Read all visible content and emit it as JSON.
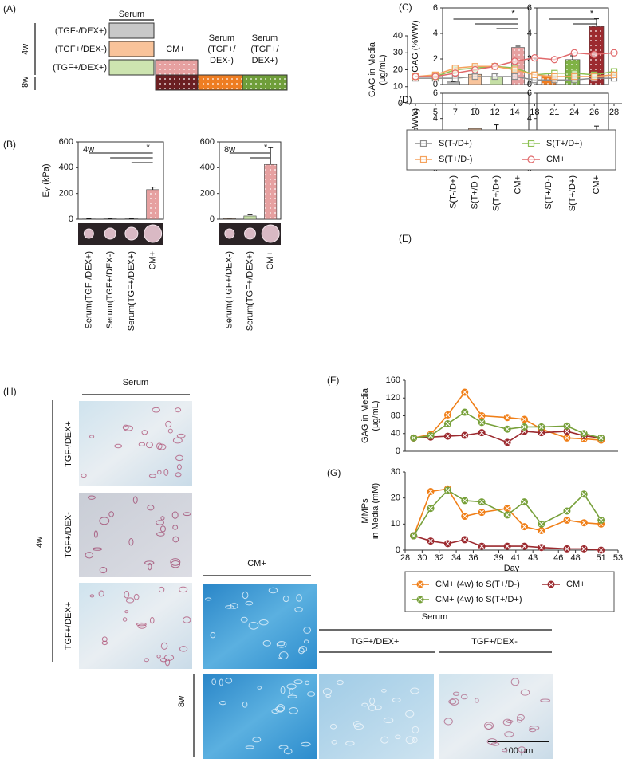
{
  "panel_labels": [
    "(A)",
    "(B)",
    "(C)",
    "(D)",
    "(E)",
    "(F)",
    "(G)",
    "(H)"
  ],
  "schematic": {
    "serum_header": "Serum",
    "conditions": [
      "(TGF-/DEX+)",
      "(TGF+/DEX-)",
      "(TGF+/DEX+)"
    ],
    "weeks": [
      "4w",
      "8w"
    ],
    "cm": "CM+",
    "switch_1": [
      "Serum",
      "(TGF+/",
      "DEX-)"
    ],
    "switch_2": [
      "Serum",
      "(TGF+/",
      "DEX+)"
    ]
  },
  "histology": {
    "serum": "Serum",
    "rows": [
      "TGF-/DEX+",
      "TGF+/DEX-",
      "TGF+/DEX+"
    ],
    "week_4": "4w",
    "cm": "CM+",
    "serum_8w": "Serum",
    "cols_8w": [
      "TGF+/DEX+",
      "TGF+/DEX-"
    ],
    "week_8": "8w",
    "scale_bar": "100 μm"
  },
  "chart_data": [
    {
      "type": "bar",
      "annotation": "4w",
      "significance": "*",
      "y_label": "E",
      "y_label_sub": "Y",
      "y_label_unit": "(kPa)",
      "categories": [
        "Serum(TGF-/DEX+)",
        "Serum(TGF+/DEX-)",
        "Serum(TGF+/DEX+)",
        "CM+"
      ],
      "values": [
        2,
        3,
        3,
        230
      ],
      "errors": [
        1,
        1,
        1,
        20
      ],
      "colors": [
        "#b3b3b3",
        "#f8c49c",
        "#c5dfa5",
        "#e6a0a0"
      ],
      "dotted": [
        false,
        false,
        false,
        true
      ],
      "ylim": [
        0,
        600
      ],
      "yticks": [
        0,
        200,
        400,
        600
      ]
    },
    {
      "type": "bar",
      "annotation": "8w",
      "significance": "*",
      "categories": [
        "Serum(TGF+/DEX-)",
        "Serum(TGF+/DEX+)",
        "CM+"
      ],
      "values": [
        5,
        25,
        425
      ],
      "errors": [
        2,
        10,
        130
      ],
      "colors": [
        "#f8c49c",
        "#c5dfa5",
        "#e6a0a0"
      ],
      "dotted": [
        false,
        false,
        true
      ],
      "ylim": [
        0,
        600
      ],
      "yticks": [
        0,
        200,
        400,
        600
      ]
    },
    {
      "type": "bar",
      "significance": "*",
      "y_label": "GAG (%WW)",
      "values": [
        0.2,
        0.8,
        0.6,
        2.9
      ],
      "errors": [
        0.05,
        0.05,
        0.3,
        0.1
      ],
      "colors": [
        "#b3b3b3",
        "#f8c49c",
        "#c5dfa5",
        "#e6a0a0"
      ],
      "dotted": [
        false,
        false,
        false,
        true
      ],
      "ylim": [
        0,
        6
      ],
      "yticks": [
        0,
        2,
        4,
        6
      ]
    },
    {
      "type": "bar",
      "significance": "*",
      "values": [
        0.7,
        1.95,
        4.55
      ],
      "errors": [
        0.15,
        0.3,
        0.6
      ],
      "colors": [
        "#ee7d22",
        "#7fb245",
        "#9c2a2f"
      ],
      "dotted": [
        true,
        true,
        true
      ],
      "ylim": [
        0,
        6
      ],
      "yticks": [
        0,
        2,
        4,
        6
      ]
    },
    {
      "type": "bar",
      "y_label": "Col (%WW)",
      "categories": [
        "S(T-/D+)",
        "S(T+/D-)",
        "S(T+/D+)",
        "CM+"
      ],
      "values": [
        0.8,
        3.2,
        2.0,
        2.1
      ],
      "errors": [
        0.9,
        1.6,
        1.5,
        0.6
      ],
      "colors": [
        "#b3b3b3",
        "#f8c49c",
        "#c5dfa5",
        "#e6a0a0"
      ],
      "dotted": [
        false,
        false,
        false,
        true
      ],
      "ylim": [
        0,
        6
      ],
      "yticks": [
        0,
        2,
        4,
        6
      ]
    },
    {
      "type": "bar",
      "categories": [
        "S(T+/D-)",
        "S(T+/D+)",
        "CM+"
      ],
      "values": [
        2.3,
        2.3,
        2.8
      ],
      "errors": [
        0.7,
        0.4,
        0.6
      ],
      "colors": [
        "#ee7d22",
        "#7fb245",
        "#9c2a2f"
      ],
      "dotted": [
        true,
        true,
        true
      ],
      "ylim": [
        0,
        6
      ],
      "yticks": [
        0,
        2,
        4,
        6
      ]
    },
    {
      "type": "line",
      "y_label": [
        "GAG in Media",
        "(μg/mL)"
      ],
      "categories": [
        "3",
        "5",
        "7",
        "10",
        "12",
        "14",
        "18",
        "21",
        "24",
        "26",
        "28"
      ],
      "ylim": [
        0,
        40
      ],
      "yticks": [
        0,
        10,
        20,
        30,
        40
      ],
      "series": [
        {
          "name": "S(T-/D+)",
          "color": "#8c8c8c",
          "marker": "square",
          "values": [
            15,
            15,
            15,
            16,
            16,
            16,
            14,
            14,
            14,
            15,
            15
          ]
        },
        {
          "name": "S(T+/D+)",
          "color": "#8cc152",
          "marker": "square",
          "values": [
            16,
            16,
            20,
            21,
            22,
            21,
            17,
            18,
            18,
            17,
            19
          ]
        },
        {
          "name": "S(T+/D-)",
          "color": "#f5a25d",
          "marker": "square",
          "values": [
            16,
            17,
            21,
            22,
            22,
            20,
            17,
            16,
            16,
            16,
            17
          ]
        },
        {
          "name": "CM+",
          "color": "#e0696b",
          "marker": "circle",
          "values": [
            16,
            16,
            18,
            20,
            22,
            25,
            27,
            26,
            30,
            29,
            30
          ]
        }
      ]
    },
    {
      "type": "line",
      "y_label": [
        "GAG in Media",
        "(μg/mL)"
      ],
      "x": [
        29,
        31,
        33,
        35,
        37,
        40,
        42,
        44,
        47,
        49,
        51
      ],
      "xlim": [
        28,
        53
      ],
      "ylim": [
        0,
        160
      ],
      "yticks": [
        0,
        40,
        80,
        120,
        160
      ],
      "series": [
        {
          "color": "#f07f18",
          "marker": "circle-x",
          "values": [
            30,
            38,
            82,
            133,
            80,
            76,
            72,
            50,
            30,
            28,
            25
          ]
        },
        {
          "color": "#9c2a2f",
          "marker": "circle-x",
          "values": [
            30,
            32,
            34,
            36,
            42,
            20,
            45,
            42,
            45,
            35,
            30
          ]
        },
        {
          "color": "#77a03a",
          "marker": "circle-x",
          "values": [
            30,
            35,
            62,
            88,
            65,
            50,
            55,
            55,
            57,
            40,
            30
          ]
        }
      ]
    },
    {
      "type": "line",
      "y_label": [
        "MMPs",
        "in Media (mM)"
      ],
      "x_label": "Day",
      "x": [
        29,
        31,
        33,
        35,
        37,
        40,
        42,
        44,
        47,
        49,
        51
      ],
      "xlim": [
        28,
        53
      ],
      "xticks": [
        28,
        30,
        32,
        34,
        36,
        39,
        41,
        43,
        46,
        48,
        51,
        53
      ],
      "ylim": [
        0,
        30
      ],
      "yticks": [
        0,
        10,
        20,
        30
      ],
      "series": [
        {
          "name": "CM+ (4w) to S(T+/D-)",
          "color": "#f07f18",
          "marker": "circle-x",
          "values": [
            5.5,
            22.5,
            23.5,
            13,
            14.5,
            16,
            9,
            7.5,
            11.5,
            10.5,
            10
          ]
        },
        {
          "name": "CM+",
          "color": "#9c2a2f",
          "marker": "circle-x",
          "values": [
            5.5,
            3.5,
            2.5,
            4,
            1.5,
            1.5,
            1.5,
            1,
            0.5,
            0.5,
            0
          ]
        },
        {
          "name": "CM+ (4w) to S(T+/D+)",
          "color": "#77a03a",
          "marker": "circle-x",
          "values": [
            5.5,
            16,
            23,
            19,
            18.5,
            13.5,
            18.5,
            10,
            15,
            21.5,
            11.5
          ]
        }
      ]
    }
  ]
}
